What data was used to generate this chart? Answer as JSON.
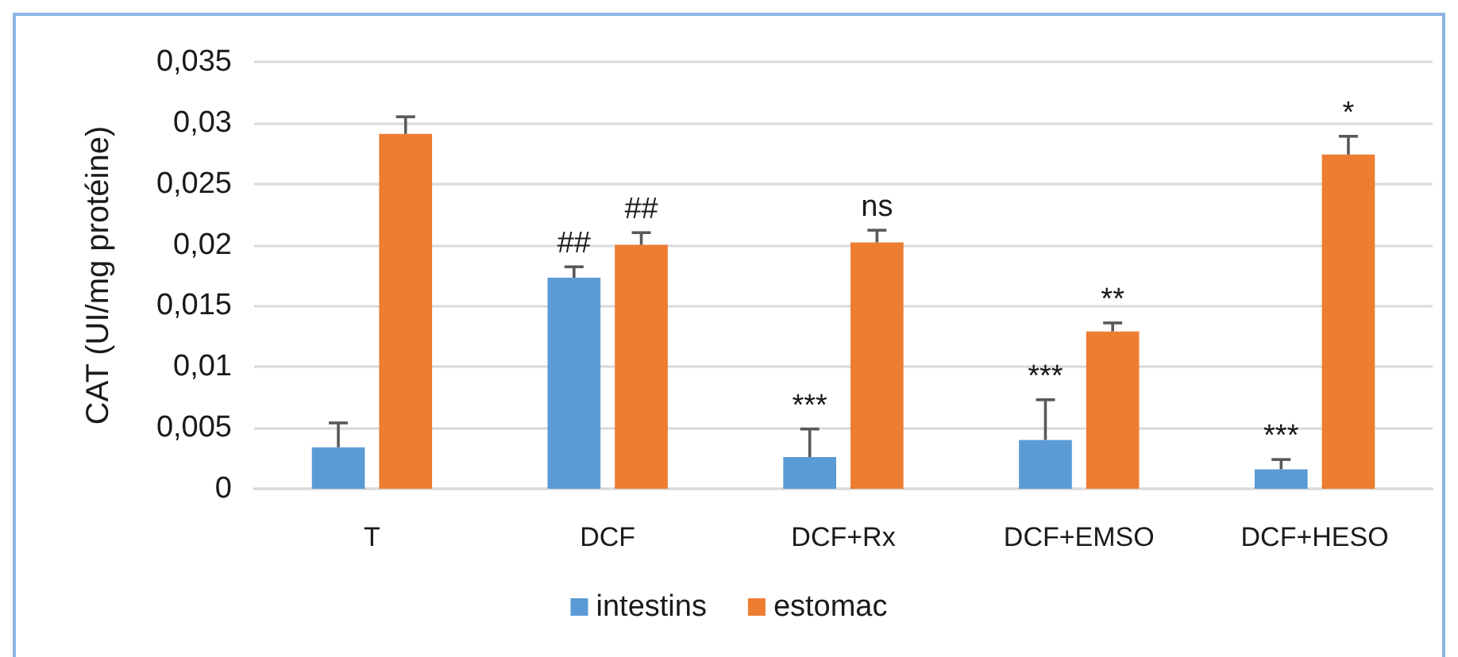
{
  "chart_data": {
    "type": "bar",
    "ylabel": "CAT (UI/mg protéine)",
    "categories": [
      "T",
      "DCF",
      "DCF+Rx",
      "DCF+EMSO",
      "DCF+HESO"
    ],
    "series": [
      {
        "name": "intestins",
        "color": "#5b9bd5",
        "values": [
          0.0034,
          0.0173,
          0.0026,
          0.004,
          0.0016
        ],
        "errors": [
          [
            0.0034,
            0.0054
          ],
          [
            0.0173,
            0.0182
          ],
          [
            0.0026,
            0.0049
          ],
          [
            0.004,
            0.0073
          ],
          [
            0.0016,
            0.0024
          ]
        ],
        "value_labels": [
          null,
          "##",
          "***",
          "***",
          "***"
        ]
      },
      {
        "name": "estomac",
        "color": "#ed7d31",
        "values": [
          0.0291,
          0.02,
          0.0202,
          0.0129,
          0.0274
        ],
        "errors": [
          [
            0.0291,
            0.0305
          ],
          [
            0.02,
            0.021
          ],
          [
            0.0202,
            0.0212
          ],
          [
            0.0129,
            0.0136
          ],
          [
            0.0274,
            0.0289
          ]
        ],
        "value_labels": [
          null,
          "##",
          "ns",
          "**",
          "*"
        ]
      }
    ],
    "ylim": [
      0,
      0.035
    ],
    "yticks": [
      0,
      {
        "value": 0.005,
        "label": "0,005"
      },
      {
        "value": 0.01,
        "label": "0,01"
      },
      {
        "value": 0.015,
        "label": "0,015"
      },
      {
        "value": 0.02,
        "label": "0,02"
      },
      {
        "value": 0.025,
        "label": "0,025"
      },
      {
        "value": 0.03,
        "label": "0,03"
      },
      {
        "value": 0.035,
        "label": "0,035"
      }
    ],
    "grid": "y",
    "legend": "bottom"
  }
}
